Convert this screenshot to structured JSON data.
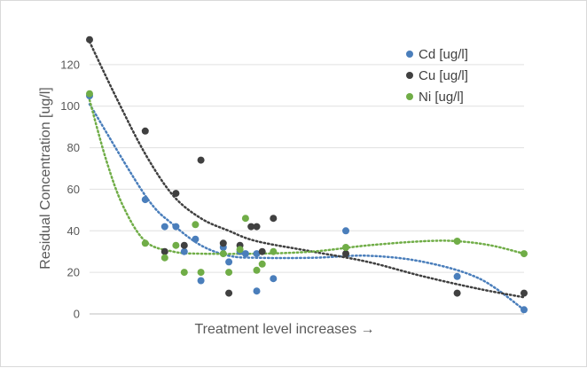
{
  "chart_data": {
    "type": "scatter",
    "title": "",
    "xlabel": "Treatment level increases →",
    "ylabel": "Residual Concentration [ug/l]",
    "ylim": [
      0,
      140
    ],
    "yticks": [
      0,
      20,
      40,
      60,
      80,
      100,
      120
    ],
    "xticks_shown": false,
    "grid": "horizontal",
    "legend_position": "right",
    "series": [
      {
        "name": "Cd [ug/l]",
        "color": "#4a7ebb",
        "marker": "circle",
        "points": [
          [
            0,
            105
          ],
          [
            1.0,
            55
          ],
          [
            1.35,
            42
          ],
          [
            1.55,
            42
          ],
          [
            1.7,
            30
          ],
          [
            1.9,
            36
          ],
          [
            2.0,
            16
          ],
          [
            2.4,
            32
          ],
          [
            2.5,
            25
          ],
          [
            2.7,
            30
          ],
          [
            2.8,
            29
          ],
          [
            3.0,
            11
          ],
          [
            3.0,
            29
          ],
          [
            3.3,
            17
          ],
          [
            4.6,
            40
          ],
          [
            6.6,
            18
          ],
          [
            7.8,
            2
          ]
        ],
        "trendline": [
          [
            0,
            101
          ],
          [
            1,
            57
          ],
          [
            1.5,
            43
          ],
          [
            2,
            33
          ],
          [
            2.5,
            28
          ],
          [
            3,
            27
          ],
          [
            4,
            27
          ],
          [
            5,
            28
          ],
          [
            6,
            25
          ],
          [
            7,
            17
          ],
          [
            7.8,
            2
          ]
        ]
      },
      {
        "name": "Cu [ug/l]",
        "color": "#404040",
        "marker": "circle",
        "points": [
          [
            0,
            132
          ],
          [
            1.0,
            88
          ],
          [
            1.35,
            30
          ],
          [
            1.55,
            58
          ],
          [
            1.7,
            33
          ],
          [
            2.0,
            74
          ],
          [
            2.4,
            34
          ],
          [
            2.5,
            10
          ],
          [
            2.7,
            33
          ],
          [
            2.9,
            42
          ],
          [
            3.0,
            42
          ],
          [
            3.1,
            30
          ],
          [
            3.3,
            46
          ],
          [
            4.6,
            29
          ],
          [
            6.6,
            10
          ],
          [
            7.8,
            10
          ]
        ],
        "trendline": [
          [
            0,
            131
          ],
          [
            0.5,
            103
          ],
          [
            1,
            77
          ],
          [
            1.5,
            57
          ],
          [
            2,
            46
          ],
          [
            2.5,
            40
          ],
          [
            3,
            35
          ],
          [
            4,
            30
          ],
          [
            5,
            25
          ],
          [
            6,
            18
          ],
          [
            7,
            12
          ],
          [
            7.8,
            8
          ]
        ]
      },
      {
        "name": "Ni [ug/l]",
        "color": "#70ad47",
        "marker": "circle",
        "points": [
          [
            0,
            106
          ],
          [
            1.0,
            34
          ],
          [
            1.35,
            27
          ],
          [
            1.55,
            33
          ],
          [
            1.7,
            20
          ],
          [
            1.9,
            43
          ],
          [
            2.0,
            20
          ],
          [
            2.4,
            29
          ],
          [
            2.5,
            20
          ],
          [
            2.7,
            31
          ],
          [
            2.8,
            46
          ],
          [
            3.0,
            21
          ],
          [
            3.1,
            24
          ],
          [
            3.3,
            30
          ],
          [
            4.6,
            32
          ],
          [
            6.6,
            35
          ],
          [
            7.8,
            29
          ]
        ],
        "trendline": [
          [
            0,
            103
          ],
          [
            0.3,
            74
          ],
          [
            0.6,
            52
          ],
          [
            1,
            35
          ],
          [
            1.5,
            30
          ],
          [
            2,
            29
          ],
          [
            3,
            29
          ],
          [
            4,
            30
          ],
          [
            5,
            33
          ],
          [
            6,
            35
          ],
          [
            6.6,
            35
          ],
          [
            7.2,
            33
          ],
          [
            7.8,
            29
          ]
        ]
      }
    ]
  }
}
